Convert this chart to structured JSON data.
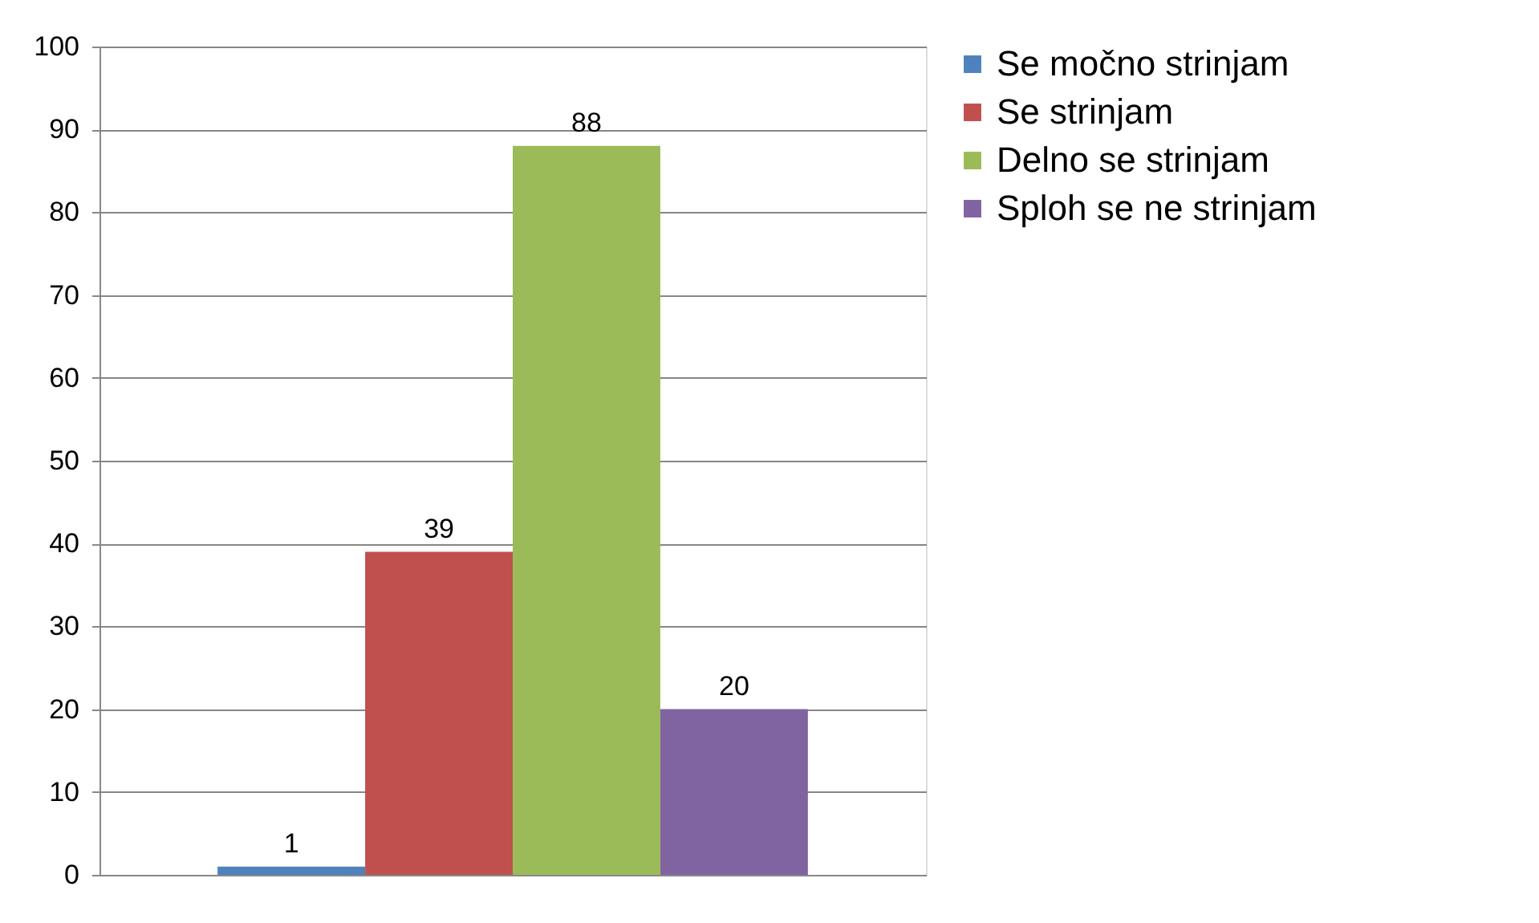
{
  "chart_data": {
    "type": "bar",
    "categories": [
      null
    ],
    "series": [
      {
        "name": "Se močno strinjam",
        "color": "#4f81bd",
        "values": [
          1
        ]
      },
      {
        "name": "Se strinjam",
        "color": "#c0504d",
        "values": [
          39
        ]
      },
      {
        "name": "Delno se strinjam",
        "color": "#9bbb59",
        "values": [
          88
        ]
      },
      {
        "name": "Sploh se ne strinjam",
        "color": "#8064a2",
        "values": [
          20
        ]
      }
    ],
    "ylim": [
      0,
      100
    ],
    "yticks": [
      0,
      10,
      20,
      30,
      40,
      50,
      60,
      70,
      80,
      90,
      100
    ],
    "grid": "y",
    "legend": "right",
    "data_labels": true,
    "tick_labels": "y"
  }
}
